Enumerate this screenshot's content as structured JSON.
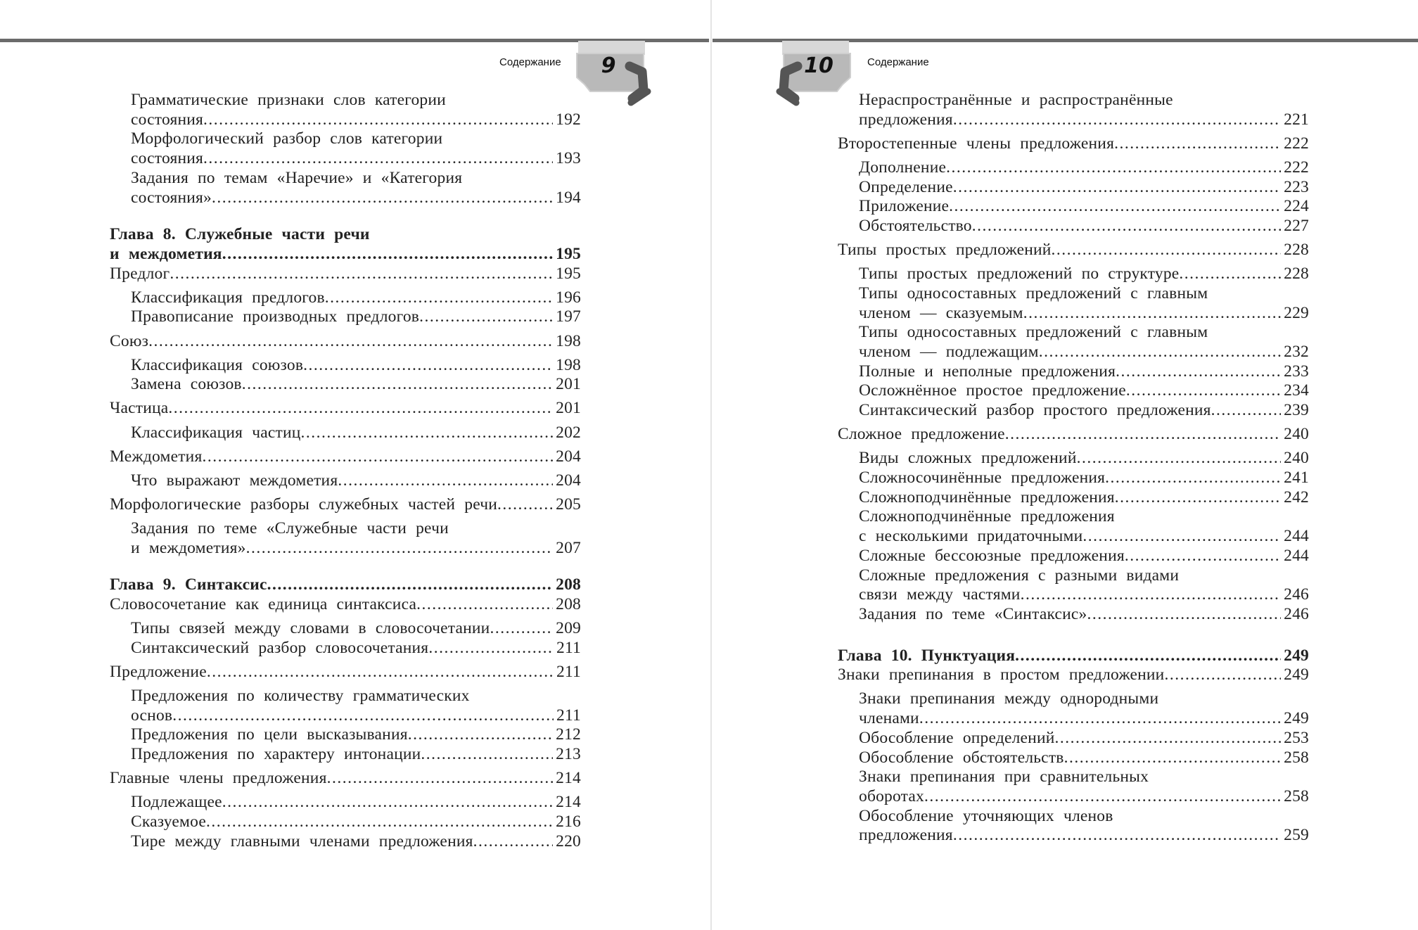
{
  "header": {
    "running_title": "Содержание"
  },
  "pages": [
    {
      "page_number": "9",
      "entries": [
        {
          "level": 2,
          "lines": [
            "Грамматические признаки слов категории",
            "состояния"
          ],
          "page": "192"
        },
        {
          "level": 2,
          "lines": [
            "Морфологический разбор слов категории",
            "состояния"
          ],
          "page": "193"
        },
        {
          "level": 2,
          "lines": [
            "Задания по темам «Наречие» и «Категория",
            "состояния»"
          ],
          "page": "194"
        },
        {
          "level": 0,
          "lines": [
            "Глава 8. Служебные части речи",
            "и междометия"
          ],
          "page": "195"
        },
        {
          "level": 1,
          "lines": [
            "Предлог"
          ],
          "page": "195"
        },
        {
          "level": 2,
          "lines": [
            "Классификация предлогов"
          ],
          "page": "196"
        },
        {
          "level": 2,
          "lines": [
            "Правописание производных предлогов"
          ],
          "page": "197"
        },
        {
          "level": 1,
          "lines": [
            "Союз"
          ],
          "page": "198"
        },
        {
          "level": 2,
          "lines": [
            "Классификация союзов"
          ],
          "page": "198"
        },
        {
          "level": 2,
          "lines": [
            "Замена союзов"
          ],
          "page": "201"
        },
        {
          "level": 1,
          "lines": [
            "Частица"
          ],
          "page": "201"
        },
        {
          "level": 2,
          "lines": [
            "Классификация частиц"
          ],
          "page": "202"
        },
        {
          "level": 1,
          "lines": [
            "Междометия"
          ],
          "page": "204"
        },
        {
          "level": 2,
          "lines": [
            "Что выражают междометия"
          ],
          "page": "204"
        },
        {
          "level": 1,
          "lines": [
            "Морфологические разборы служебных частей речи"
          ],
          "page": "205"
        },
        {
          "level": 2,
          "lines": [
            "Задания по теме «Служебные части речи",
            "и междометия»"
          ],
          "page": "207"
        },
        {
          "level": 0,
          "lines": [
            "Глава 9. Синтаксис"
          ],
          "page": "208"
        },
        {
          "level": 1,
          "lines": [
            "Словосочетание как единица синтаксиса"
          ],
          "page": "208"
        },
        {
          "level": 2,
          "lines": [
            "Типы связей между словами в словосочетании"
          ],
          "page": "209"
        },
        {
          "level": 2,
          "lines": [
            "Синтаксический разбор словосочетания"
          ],
          "page": "211"
        },
        {
          "level": 1,
          "lines": [
            "Предложение"
          ],
          "page": "211"
        },
        {
          "level": 2,
          "lines": [
            "Предложения по количеству грамматических",
            "основ"
          ],
          "page": "211"
        },
        {
          "level": 2,
          "lines": [
            "Предложения по цели высказывания"
          ],
          "page": "212"
        },
        {
          "level": 2,
          "lines": [
            "Предложения по характеру интонации"
          ],
          "page": "213"
        },
        {
          "level": 1,
          "lines": [
            "Главные члены предложения"
          ],
          "page": "214"
        },
        {
          "level": 2,
          "lines": [
            "Подлежащее"
          ],
          "page": "214"
        },
        {
          "level": 2,
          "lines": [
            "Сказуемое"
          ],
          "page": "216"
        },
        {
          "level": 2,
          "lines": [
            "Тире между главными членами предложения"
          ],
          "page": "220"
        }
      ]
    },
    {
      "page_number": "10",
      "entries": [
        {
          "level": 2,
          "lines": [
            "Нераспространённые и распространённые",
            "предложения"
          ],
          "page": "221"
        },
        {
          "level": 1,
          "lines": [
            "Второстепенные члены предложения"
          ],
          "page": "222"
        },
        {
          "level": 2,
          "lines": [
            "Дополнение"
          ],
          "page": "222"
        },
        {
          "level": 2,
          "lines": [
            "Определение"
          ],
          "page": "223"
        },
        {
          "level": 2,
          "lines": [
            "Приложение"
          ],
          "page": "224"
        },
        {
          "level": 2,
          "lines": [
            "Обстоятельство"
          ],
          "page": "227"
        },
        {
          "level": 1,
          "lines": [
            "Типы простых предложений"
          ],
          "page": "228"
        },
        {
          "level": 2,
          "lines": [
            "Типы простых предложений по структуре"
          ],
          "page": "228"
        },
        {
          "level": 2,
          "lines": [
            "Типы односоставных предложений с главным",
            "членом — сказуемым"
          ],
          "page": "229"
        },
        {
          "level": 2,
          "lines": [
            "Типы односоставных предложений с главным",
            "членом — подлежащим"
          ],
          "page": "232"
        },
        {
          "level": 2,
          "lines": [
            "Полные и неполные предложения"
          ],
          "page": "233"
        },
        {
          "level": 2,
          "lines": [
            "Осложнённое простое предложение"
          ],
          "page": "234"
        },
        {
          "level": 2,
          "lines": [
            "Синтаксический разбор простого предложения"
          ],
          "page": "239"
        },
        {
          "level": 1,
          "lines": [
            "Сложное предложение"
          ],
          "page": "240"
        },
        {
          "level": 2,
          "lines": [
            "Виды сложных предложений"
          ],
          "page": "240"
        },
        {
          "level": 2,
          "lines": [
            "Сложносочинённые предложения"
          ],
          "page": "241"
        },
        {
          "level": 2,
          "lines": [
            "Сложноподчинённые предложения"
          ],
          "page": "242"
        },
        {
          "level": 2,
          "lines": [
            "Сложноподчинённые предложения",
            "с несколькими придаточными"
          ],
          "page": "244"
        },
        {
          "level": 2,
          "lines": [
            "Сложные бессоюзные предложения"
          ],
          "page": "244"
        },
        {
          "level": 2,
          "lines": [
            "Сложные предложения с разными видами",
            "связи между частями"
          ],
          "page": "246"
        },
        {
          "level": 2,
          "lines": [
            "Задания по теме «Синтаксис»"
          ],
          "page": "246"
        },
        {
          "level": 0,
          "lines": [
            "Глава 10. Пунктуация"
          ],
          "page": "249"
        },
        {
          "level": 1,
          "lines": [
            "Знаки препинания в простом предложении"
          ],
          "page": "249"
        },
        {
          "level": 2,
          "lines": [
            "Знаки препинания между однородными",
            "членами"
          ],
          "page": "249"
        },
        {
          "level": 2,
          "lines": [
            "Обособление определений"
          ],
          "page": "253"
        },
        {
          "level": 2,
          "lines": [
            "Обособление обстоятельств"
          ],
          "page": "258"
        },
        {
          "level": 2,
          "lines": [
            "Знаки препинания при сравнительных",
            "оборотах"
          ],
          "page": "258"
        },
        {
          "level": 2,
          "lines": [
            "Обособление уточняющих членов",
            "предложения"
          ],
          "page": "259"
        }
      ]
    }
  ],
  "colors": {
    "rule": "#6b6b6b",
    "badge_fill": "#b9b9b9",
    "badge_hand": "#555555"
  }
}
